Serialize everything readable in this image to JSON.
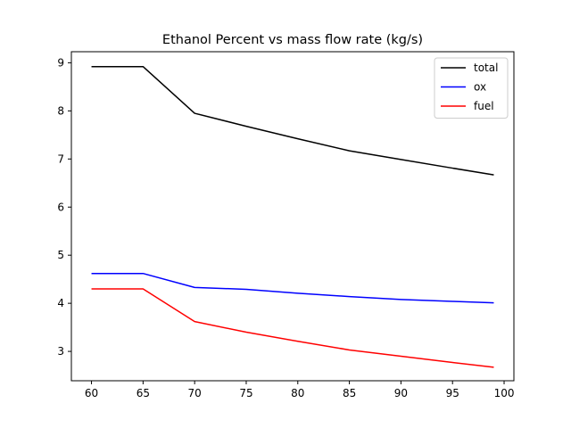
{
  "chart_data": {
    "type": "line",
    "title": "Ethanol Percent vs mass flow rate (kg/s)",
    "xlabel": "",
    "ylabel": "",
    "x": [
      60,
      65,
      70,
      75,
      80,
      85,
      90,
      95,
      99
    ],
    "xlim": [
      58.05,
      100.95
    ],
    "ylim": [
      2.39,
      9.23
    ],
    "xticks": [
      60,
      65,
      70,
      75,
      80,
      85,
      90,
      95,
      100
    ],
    "yticks": [
      3,
      4,
      5,
      6,
      7,
      8,
      9
    ],
    "grid": false,
    "legend_position": "top-right",
    "series": [
      {
        "name": "total",
        "color": "#000000",
        "values": [
          8.92,
          8.92,
          7.95,
          7.68,
          7.42,
          7.17,
          6.99,
          6.81,
          6.67
        ]
      },
      {
        "name": "ox",
        "color": "#0000ff",
        "values": [
          4.62,
          4.62,
          4.33,
          4.29,
          4.21,
          4.14,
          4.08,
          4.04,
          4.01
        ]
      },
      {
        "name": "fuel",
        "color": "#ff0000",
        "values": [
          4.3,
          4.3,
          3.62,
          3.4,
          3.21,
          3.03,
          2.9,
          2.77,
          2.67
        ]
      }
    ]
  }
}
